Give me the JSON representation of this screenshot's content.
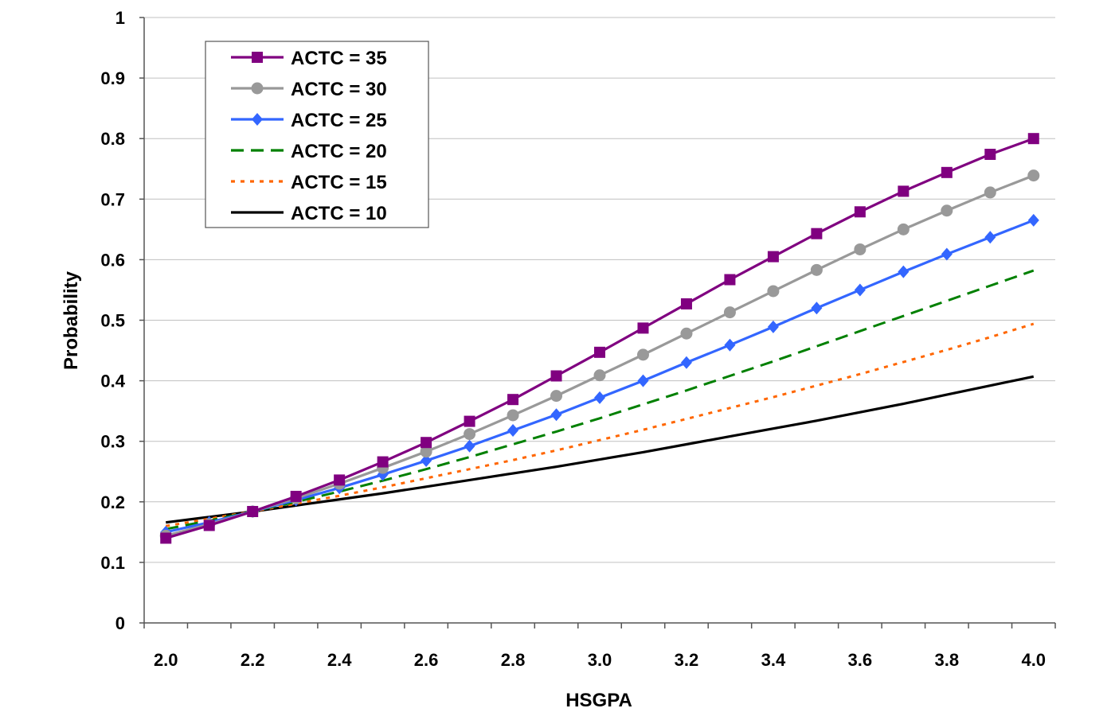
{
  "chart_data": {
    "type": "line",
    "title": "",
    "xlabel": "HSGPA",
    "ylabel": "Probability",
    "xlim": [
      1.95,
      4.05
    ],
    "ylim": [
      0,
      1
    ],
    "grid": true,
    "legend_position": "top-left",
    "x_tick_labels": [
      "2.0",
      "2.2",
      "2.4",
      "2.6",
      "2.8",
      "3.0",
      "3.2",
      "3.4",
      "3.6",
      "3.8",
      "4.0"
    ],
    "y_tick_labels": [
      "0",
      "0.1",
      "0.2",
      "0.3",
      "0.4",
      "0.5",
      "0.6",
      "0.7",
      "0.8",
      "0.9",
      "1"
    ],
    "x": [
      2.0,
      2.1,
      2.2,
      2.3,
      2.4,
      2.5,
      2.6,
      2.7,
      2.8,
      2.9,
      3.0,
      3.1,
      3.2,
      3.3,
      3.4,
      3.5,
      3.6,
      3.7,
      3.8,
      3.9,
      4.0
    ],
    "series": [
      {
        "name": "ACTC = 35",
        "color": "#800080",
        "line": "solid",
        "marker": "square",
        "values": [
          0.14,
          0.161,
          0.184,
          0.209,
          0.236,
          0.266,
          0.298,
          0.333,
          0.369,
          0.408,
          0.447,
          0.487,
          0.527,
          0.567,
          0.605,
          0.643,
          0.679,
          0.713,
          0.744,
          0.774,
          0.8
        ]
      },
      {
        "name": "ACTC = 30",
        "color": "#999999",
        "line": "solid",
        "marker": "circle",
        "values": [
          0.144,
          0.163,
          0.184,
          0.206,
          0.23,
          0.256,
          0.283,
          0.312,
          0.343,
          0.375,
          0.409,
          0.443,
          0.478,
          0.513,
          0.548,
          0.583,
          0.617,
          0.65,
          0.681,
          0.711,
          0.739
        ]
      },
      {
        "name": "ACTC = 25",
        "color": "#3366ff",
        "line": "solid",
        "marker": "diamond",
        "values": [
          0.15,
          0.166,
          0.184,
          0.203,
          0.223,
          0.245,
          0.268,
          0.292,
          0.318,
          0.344,
          0.372,
          0.4,
          0.43,
          0.459,
          0.489,
          0.52,
          0.55,
          0.58,
          0.609,
          0.637,
          0.665
        ]
      },
      {
        "name": "ACTC = 20",
        "color": "#008000",
        "line": "dashed",
        "marker": "none",
        "values": [
          0.155,
          0.169,
          0.184,
          0.2,
          0.217,
          0.235,
          0.254,
          0.274,
          0.295,
          0.316,
          0.338,
          0.361,
          0.384,
          0.408,
          0.432,
          0.457,
          0.482,
          0.507,
          0.532,
          0.557,
          0.582
        ]
      },
      {
        "name": "ACTC = 15",
        "color": "#ff6600",
        "line": "dotted",
        "marker": "none",
        "values": [
          0.16,
          0.172,
          0.184,
          0.197,
          0.21,
          0.224,
          0.239,
          0.254,
          0.269,
          0.285,
          0.302,
          0.319,
          0.337,
          0.355,
          0.373,
          0.392,
          0.411,
          0.431,
          0.451,
          0.472,
          0.494
        ]
      },
      {
        "name": "ACTC = 10",
        "color": "#000000",
        "line": "solid",
        "marker": "none",
        "values": [
          0.166,
          0.175,
          0.184,
          0.194,
          0.204,
          0.214,
          0.225,
          0.236,
          0.247,
          0.258,
          0.27,
          0.282,
          0.295,
          0.308,
          0.321,
          0.334,
          0.348,
          0.362,
          0.377,
          0.392,
          0.407
        ]
      }
    ]
  }
}
